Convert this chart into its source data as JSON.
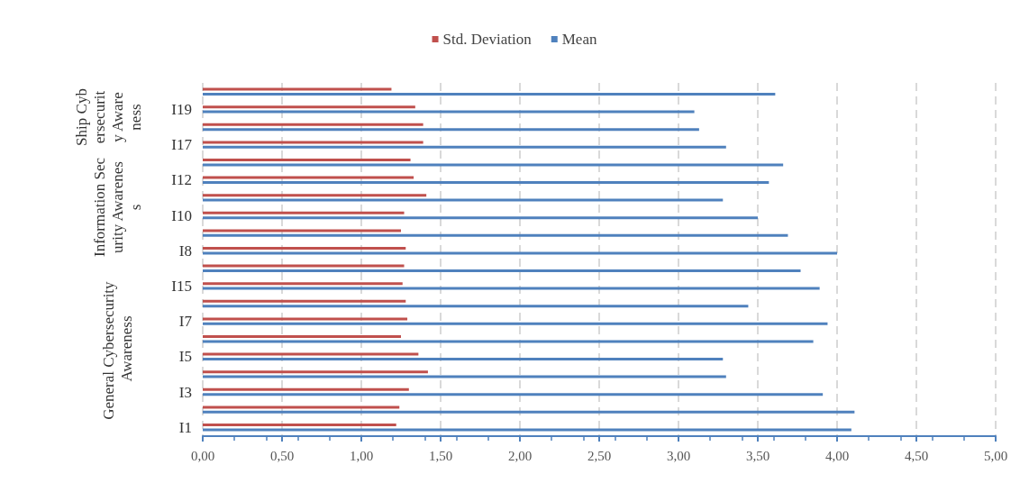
{
  "chart_data": {
    "type": "bar",
    "orientation": "horizontal",
    "categories": [
      null,
      "I19",
      null,
      "I17",
      null,
      "I12",
      null,
      "I10",
      null,
      "I8",
      null,
      "I15",
      null,
      "I7",
      null,
      "I5",
      null,
      "I3",
      null,
      "I1"
    ],
    "series": [
      {
        "name": "Std. Deviation",
        "color": "#c0504d",
        "values": [
          1.19,
          1.34,
          1.39,
          1.39,
          1.31,
          1.33,
          1.41,
          1.27,
          1.25,
          1.28,
          1.27,
          1.26,
          1.28,
          1.29,
          1.25,
          1.36,
          1.42,
          1.3,
          1.24,
          1.22
        ]
      },
      {
        "name": "Mean",
        "color": "#4f81bd",
        "values": [
          3.61,
          3.1,
          3.13,
          3.3,
          3.66,
          3.57,
          3.28,
          3.5,
          3.69,
          4.0,
          3.77,
          3.89,
          3.44,
          3.94,
          3.85,
          3.28,
          3.3,
          3.91,
          4.11,
          4.09
        ]
      }
    ],
    "xlim": [
      0,
      5
    ],
    "xticks": [
      {
        "value": 0,
        "label": "0,00"
      },
      {
        "value": 0.5,
        "label": "0,50"
      },
      {
        "value": 1,
        "label": "1,00"
      },
      {
        "value": 1.5,
        "label": "1,50"
      },
      {
        "value": 2,
        "label": "2,00"
      },
      {
        "value": 2.5,
        "label": "2,50"
      },
      {
        "value": 3,
        "label": "3,00"
      },
      {
        "value": 3.5,
        "label": "3,50"
      },
      {
        "value": 4,
        "label": "4,00"
      },
      {
        "value": 4.5,
        "label": "4,50"
      },
      {
        "value": 5,
        "label": "5,00"
      }
    ],
    "annotations": [
      "Ship Cybersecurity Awareness",
      "Information Security Awareness",
      "General Cybersecurity Awareness"
    ],
    "grid": "x",
    "legend": "top"
  }
}
